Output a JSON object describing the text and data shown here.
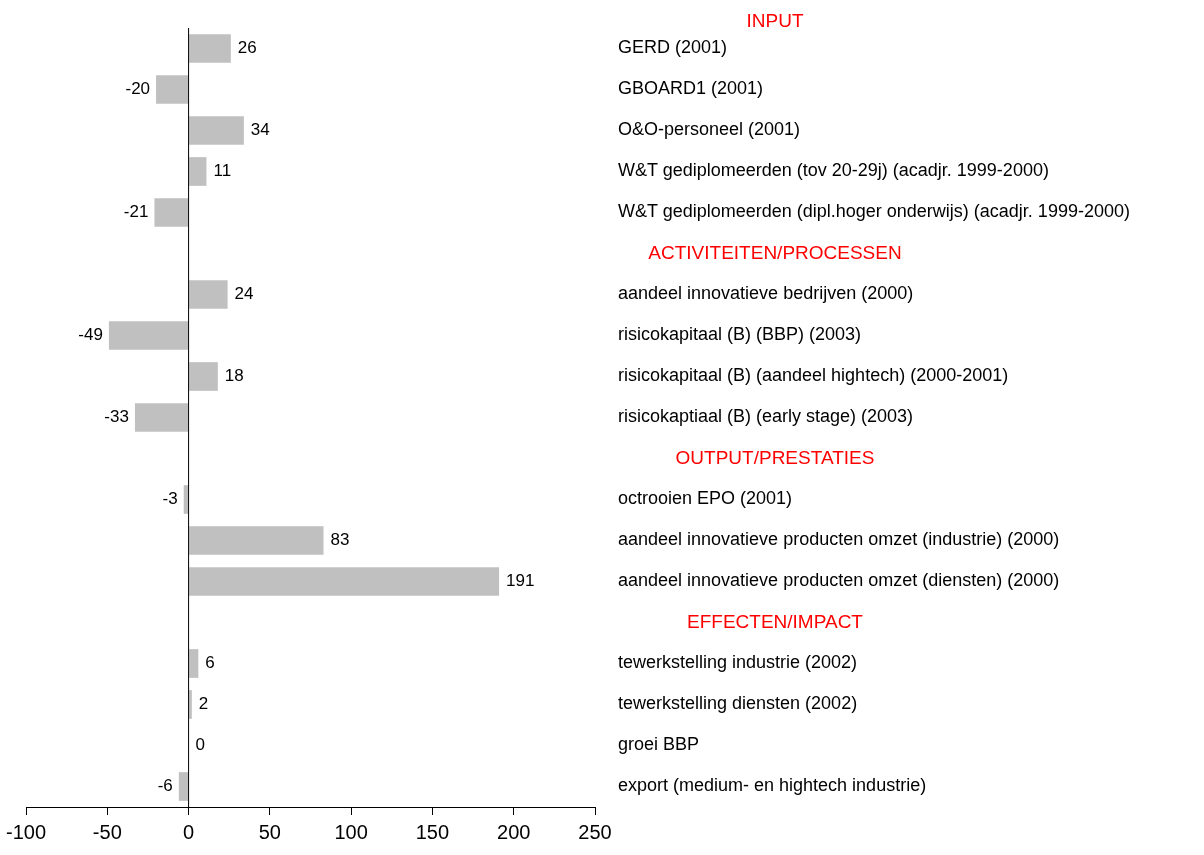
{
  "chart_data": {
    "type": "bar",
    "orientation": "horizontal",
    "categories": [
      "GERD (2001)",
      "GBOARD1 (2001)",
      "O&O-personeel (2001)",
      "W&T gediplomeerden (tov 20-29j) (acadjr. 1999-2000)",
      "W&T gediplomeerden (dipl.hoger onderwijs) (acadjr. 1999-2000)",
      null,
      "aandeel innovatieve bedrijven (2000)",
      "risicokapitaal (B) (BBP) (2003)",
      "risicokapitaal (B) (aandeel hightech) (2000-2001)",
      "risicokaptiaal (B) (early stage) (2003)",
      null,
      "octrooien EPO (2001)",
      "aandeel innovatieve producten omzet (industrie) (2000)",
      "aandeel innovatieve producten omzet (diensten) (2000)",
      null,
      "tewerkstelling industrie (2002)",
      "tewerkstelling diensten (2002)",
      "groei BBP",
      "export (medium- en hightech industrie)"
    ],
    "values": [
      26,
      -20,
      34,
      11,
      -21,
      null,
      24,
      -49,
      18,
      -33,
      null,
      -3,
      83,
      191,
      null,
      6,
      2,
      0,
      -6
    ],
    "color": "#c0c0c0",
    "xlim": [
      -100,
      250
    ],
    "xticks": [
      -100,
      -50,
      0,
      50,
      100,
      150,
      200,
      250
    ],
    "ref_lines": [
      {
        "axis": "x",
        "value": 0,
        "color": "#000000"
      }
    ],
    "data_labels": true,
    "grid": false,
    "legend": false,
    "annotations": [
      "INPUT",
      "ACTIVITEITEN/PROCESSEN",
      "OUTPUT/PRESTATIES",
      "EFFECTEN/IMPACT"
    ]
  }
}
